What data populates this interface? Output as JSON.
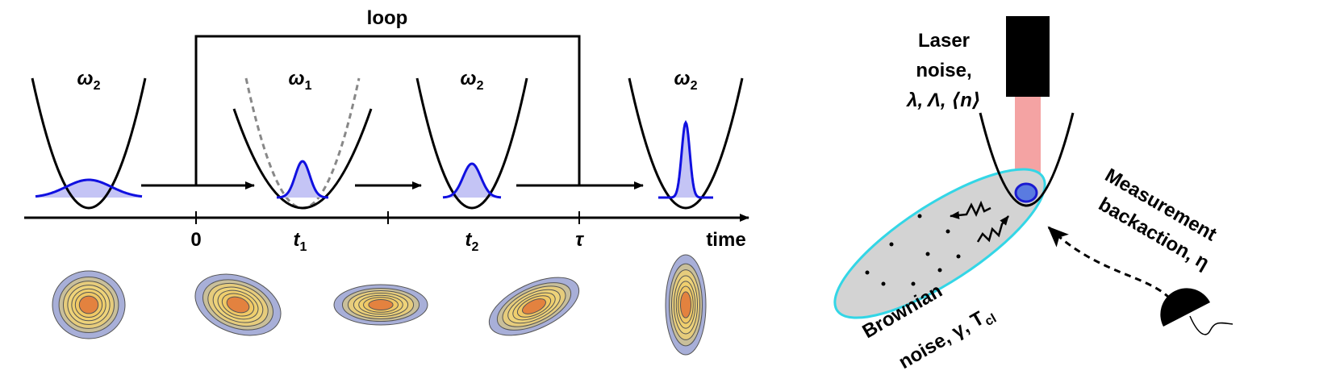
{
  "loop": "loop",
  "wells": [
    {
      "symbol": "ω",
      "sub": "2"
    },
    {
      "symbol": "ω",
      "sub": "1"
    },
    {
      "symbol": "ω",
      "sub": "2"
    },
    {
      "symbol": "ω",
      "sub": "2"
    }
  ],
  "axis": {
    "ticks": [
      {
        "text": "0"
      },
      {
        "text": "t",
        "sub": "1"
      },
      {
        "text": "t",
        "sub": "2"
      },
      {
        "text": "τ"
      }
    ],
    "label": "time"
  },
  "laser_label": [
    "Laser",
    "noise,",
    "λ, Λ, ⟨n⟩"
  ],
  "backaction_label": [
    "Measurement",
    "backaction, η"
  ],
  "brownian_label": {
    "line1": "Brownian",
    "line2": "noise, γ, T",
    "sub": "cl"
  }
}
